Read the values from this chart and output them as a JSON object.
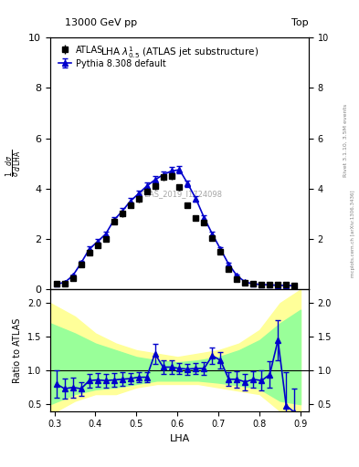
{
  "title_left": "13000 GeV pp",
  "title_right": "Top",
  "watermark": "ATLAS_2019_I1724098",
  "ylabel_main": "$\\frac{1}{\\sigma}\\frac{d\\sigma}{d\\,\\mathrm{LHA}}$",
  "ylabel_ratio": "Ratio to ATLAS",
  "xlabel": "LHA",
  "rivet_label": "Rivet 3.1.10, 3.5M events",
  "mcplots_label": "mcplots.cern.ch [arXiv:1306.3436]",
  "plot_label": "LHA $\\lambda^{1}_{0.5}$ (ATLAS jet substructure)",
  "ylim_main": [
    0,
    10
  ],
  "ylim_ratio": [
    0.4,
    2.2
  ],
  "atlas_x": [
    0.305,
    0.325,
    0.345,
    0.365,
    0.385,
    0.405,
    0.425,
    0.445,
    0.465,
    0.485,
    0.505,
    0.525,
    0.545,
    0.565,
    0.585,
    0.605,
    0.625,
    0.645,
    0.665,
    0.685,
    0.705,
    0.725,
    0.745,
    0.765,
    0.785,
    0.805,
    0.825,
    0.845,
    0.865,
    0.885
  ],
  "atlas_y": [
    0.22,
    0.25,
    0.45,
    1.0,
    1.45,
    1.75,
    2.0,
    2.7,
    3.0,
    3.35,
    3.6,
    3.9,
    4.1,
    4.45,
    4.5,
    4.05,
    3.35,
    2.85,
    2.65,
    2.05,
    1.5,
    0.8,
    0.42,
    0.28,
    0.22,
    0.2,
    0.2,
    0.18,
    0.18,
    0.17
  ],
  "atlas_yerr": [
    0.04,
    0.04,
    0.06,
    0.08,
    0.1,
    0.1,
    0.1,
    0.12,
    0.12,
    0.12,
    0.13,
    0.13,
    0.14,
    0.14,
    0.14,
    0.13,
    0.12,
    0.11,
    0.11,
    0.1,
    0.08,
    0.06,
    0.04,
    0.04,
    0.03,
    0.03,
    0.03,
    0.03,
    0.03,
    0.03
  ],
  "pythia_x": [
    0.305,
    0.325,
    0.345,
    0.365,
    0.385,
    0.405,
    0.425,
    0.445,
    0.465,
    0.485,
    0.505,
    0.525,
    0.545,
    0.565,
    0.585,
    0.605,
    0.625,
    0.645,
    0.665,
    0.685,
    0.705,
    0.725,
    0.745,
    0.765,
    0.785,
    0.805,
    0.825,
    0.845,
    0.865,
    0.885
  ],
  "pythia_y": [
    0.22,
    0.28,
    0.55,
    1.05,
    1.6,
    1.9,
    2.2,
    2.75,
    3.1,
    3.5,
    3.8,
    4.1,
    4.35,
    4.55,
    4.7,
    4.75,
    4.2,
    3.6,
    2.85,
    2.2,
    1.6,
    1.0,
    0.55,
    0.3,
    0.22,
    0.2,
    0.18,
    0.17,
    0.16,
    0.15
  ],
  "pythia_yerr": [
    0.04,
    0.04,
    0.06,
    0.08,
    0.1,
    0.1,
    0.1,
    0.12,
    0.12,
    0.12,
    0.13,
    0.13,
    0.14,
    0.14,
    0.15,
    0.15,
    0.13,
    0.12,
    0.11,
    0.1,
    0.08,
    0.06,
    0.04,
    0.04,
    0.03,
    0.03,
    0.03,
    0.03,
    0.03,
    0.03
  ],
  "ratio_x": [
    0.305,
    0.325,
    0.345,
    0.365,
    0.385,
    0.405,
    0.425,
    0.445,
    0.465,
    0.485,
    0.505,
    0.525,
    0.545,
    0.565,
    0.585,
    0.605,
    0.625,
    0.645,
    0.665,
    0.685,
    0.705,
    0.725,
    0.745,
    0.765,
    0.785,
    0.805,
    0.825,
    0.845,
    0.865,
    0.885
  ],
  "ratio_y": [
    0.8,
    0.73,
    0.75,
    0.73,
    0.85,
    0.86,
    0.85,
    0.86,
    0.87,
    0.88,
    0.9,
    0.9,
    1.25,
    1.05,
    1.05,
    1.03,
    1.02,
    1.03,
    1.03,
    1.22,
    1.15,
    0.87,
    0.87,
    0.83,
    0.87,
    0.85,
    0.94,
    1.45,
    0.48,
    0.38
  ],
  "ratio_yerr": [
    0.2,
    0.15,
    0.15,
    0.1,
    0.1,
    0.1,
    0.1,
    0.1,
    0.1,
    0.08,
    0.08,
    0.08,
    0.15,
    0.1,
    0.1,
    0.08,
    0.08,
    0.08,
    0.1,
    0.12,
    0.12,
    0.1,
    0.12,
    0.12,
    0.12,
    0.15,
    0.2,
    0.3,
    0.5,
    0.35
  ],
  "yellow_band_x": [
    0.29,
    0.35,
    0.4,
    0.45,
    0.5,
    0.55,
    0.6,
    0.65,
    0.7,
    0.75,
    0.8,
    0.85,
    0.9
  ],
  "yellow_band_lo": [
    0.35,
    0.55,
    0.65,
    0.65,
    0.75,
    0.8,
    0.8,
    0.8,
    0.75,
    0.7,
    0.65,
    0.4,
    0.4
  ],
  "yellow_band_hi": [
    2.0,
    1.8,
    1.55,
    1.4,
    1.3,
    1.25,
    1.2,
    1.25,
    1.3,
    1.4,
    1.6,
    2.0,
    2.2
  ],
  "green_band_x": [
    0.29,
    0.35,
    0.4,
    0.45,
    0.5,
    0.55,
    0.6,
    0.65,
    0.7,
    0.75,
    0.8,
    0.85,
    0.9
  ],
  "green_band_lo": [
    0.5,
    0.65,
    0.72,
    0.75,
    0.8,
    0.85,
    0.85,
    0.85,
    0.82,
    0.78,
    0.73,
    0.55,
    0.5
  ],
  "green_band_hi": [
    1.7,
    1.55,
    1.4,
    1.3,
    1.2,
    1.15,
    1.12,
    1.15,
    1.2,
    1.3,
    1.45,
    1.7,
    1.9
  ],
  "color_atlas": "black",
  "color_pythia": "#0000cc",
  "color_yellow": "#ffff99",
  "color_green": "#99ff99",
  "xlim": [
    0.29,
    0.92
  ]
}
